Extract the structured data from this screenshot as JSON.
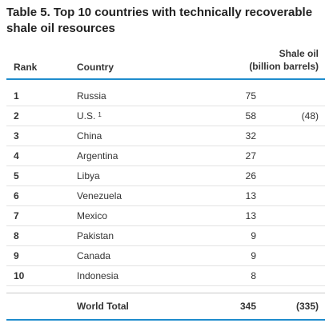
{
  "title": "Table 5. Top 10 countries with technically recoverable shale oil resources",
  "header": {
    "rank": "Rank",
    "country": "Country",
    "shale_line1": "Shale oil",
    "shale_line2": "(billion barrels)"
  },
  "rows": [
    {
      "rank": "1",
      "country": "Russia",
      "footnote": "",
      "value": "75",
      "alt": ""
    },
    {
      "rank": "2",
      "country": "U.S.",
      "footnote": "1",
      "value": "58",
      "alt": "(48)"
    },
    {
      "rank": "3",
      "country": "China",
      "footnote": "",
      "value": "32",
      "alt": ""
    },
    {
      "rank": "4",
      "country": "Argentina",
      "footnote": "",
      "value": "27",
      "alt": ""
    },
    {
      "rank": "5",
      "country": "Libya",
      "footnote": "",
      "value": "26",
      "alt": ""
    },
    {
      "rank": "6",
      "country": "Venezuela",
      "footnote": "",
      "value": "13",
      "alt": ""
    },
    {
      "rank": "7",
      "country": "Mexico",
      "footnote": "",
      "value": "13",
      "alt": ""
    },
    {
      "rank": "8",
      "country": "Pakistan",
      "footnote": "",
      "value": "9",
      "alt": ""
    },
    {
      "rank": "9",
      "country": "Canada",
      "footnote": "",
      "value": "9",
      "alt": ""
    },
    {
      "rank": "10",
      "country": "Indonesia",
      "footnote": "",
      "value": "8",
      "alt": ""
    }
  ],
  "total": {
    "label": "World Total",
    "value": "345",
    "alt": "(335)"
  },
  "colors": {
    "rule": "#1f8ccd"
  }
}
